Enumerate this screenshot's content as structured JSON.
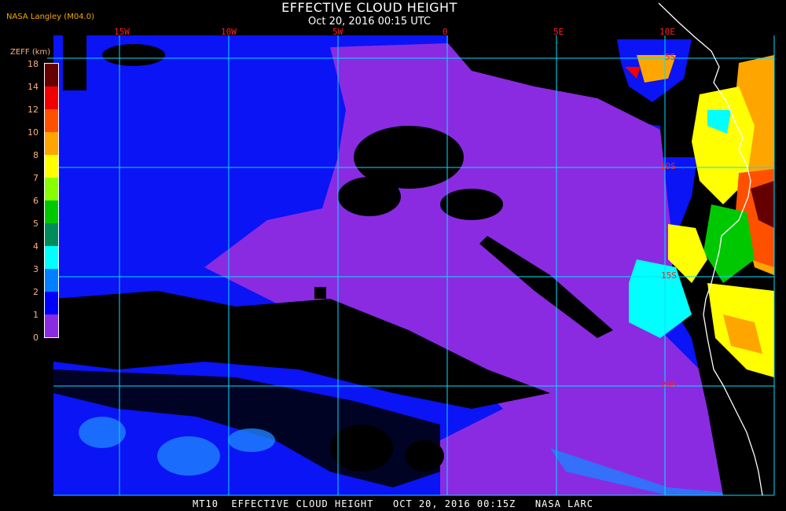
{
  "header": {
    "title": "EFFECTIVE CLOUD HEIGHT",
    "subtitle": "Oct 20, 2016 00:15 UTC",
    "source": "NASA Langley (M04.0)"
  },
  "legend": {
    "title": "ZEFF (km)",
    "ticks": [
      "18",
      "14",
      "12",
      "10",
      "8",
      "7",
      "6",
      "5",
      "4",
      "3",
      "2",
      "1",
      "0"
    ],
    "colors": [
      "#640000",
      "#f00000",
      "#ff5000",
      "#ffa500",
      "#ffff00",
      "#88ff00",
      "#00c800",
      "#008c5a",
      "#00ffff",
      "#0080ff",
      "#0000ff",
      "#8a2be2"
    ]
  },
  "map": {
    "longitude_labels": [
      "15W",
      "10W",
      "5W",
      "0",
      "5E",
      "10E"
    ],
    "latitude_labels": [
      "5S",
      "10S",
      "15S",
      "20S"
    ],
    "grid_color": "#00e0ff",
    "coastline_color": "#ffffff"
  },
  "footer": {
    "text": "MT10  EFFECTIVE CLOUD HEIGHT   OCT 20, 2016 00:15Z   NASA LARC"
  }
}
